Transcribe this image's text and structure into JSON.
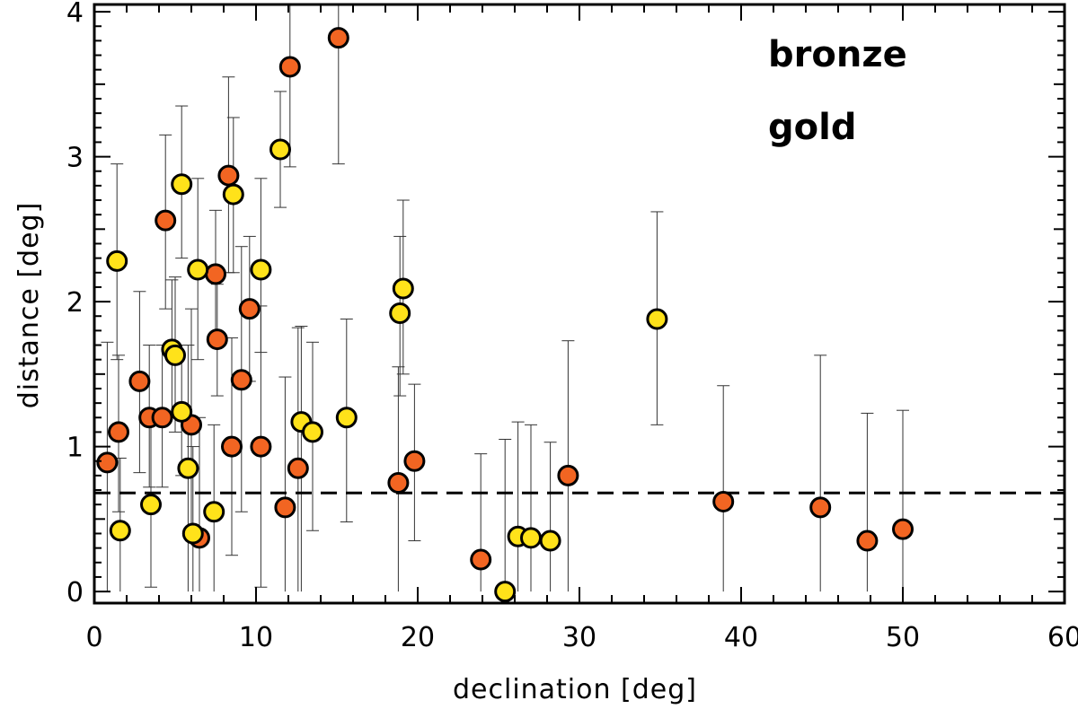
{
  "chart_data": {
    "type": "scatter",
    "title": "",
    "xlabel": "declination [deg]",
    "ylabel": "distance [deg]",
    "xlim": [
      0,
      60
    ],
    "ylim": [
      -0.08,
      4.05
    ],
    "xticks": [
      0,
      10,
      20,
      30,
      40,
      50,
      60
    ],
    "yticks": [
      0,
      1,
      2,
      3,
      4
    ],
    "xtick_labels": [
      "0",
      "10",
      "20",
      "30",
      "40",
      "50",
      "60"
    ],
    "ytick_labels": [
      "0",
      "1",
      "2",
      "3",
      "4"
    ],
    "reference_line": {
      "y": 0.68,
      "style": "dashed"
    },
    "legend": [
      {
        "label": "bronze",
        "color": "#FF7F27"
      },
      {
        "label": "gold",
        "color": "#FFE21A"
      }
    ],
    "series": [
      {
        "name": "bronze",
        "color": "#F26522",
        "points": [
          {
            "x": 0.8,
            "y": 0.89,
            "lo": 0.0,
            "hi": 1.72
          },
          {
            "x": 1.5,
            "y": 1.1,
            "lo": 0.55,
            "hi": 1.63
          },
          {
            "x": 2.8,
            "y": 1.45,
            "lo": 0.82,
            "hi": 2.07
          },
          {
            "x": 3.4,
            "y": 1.2,
            "lo": 0.72,
            "hi": 1.7
          },
          {
            "x": 4.2,
            "y": 1.2,
            "lo": 0.72,
            "hi": 1.7
          },
          {
            "x": 4.4,
            "y": 2.56,
            "lo": 1.95,
            "hi": 3.15
          },
          {
            "x": 6.0,
            "y": 1.15,
            "lo": 0.35,
            "hi": 1.95
          },
          {
            "x": 6.5,
            "y": 0.37,
            "lo": 0.0,
            "hi": 1.2
          },
          {
            "x": 7.5,
            "y": 2.19,
            "lo": 1.75,
            "hi": 2.63
          },
          {
            "x": 7.6,
            "y": 1.74,
            "lo": 1.35,
            "hi": 2.12
          },
          {
            "x": 8.3,
            "y": 2.87,
            "lo": 2.2,
            "hi": 3.55
          },
          {
            "x": 8.5,
            "y": 1.0,
            "lo": 0.25,
            "hi": 1.75
          },
          {
            "x": 9.1,
            "y": 1.46,
            "lo": 0.55,
            "hi": 2.38
          },
          {
            "x": 9.6,
            "y": 1.95,
            "lo": 1.45,
            "hi": 2.45
          },
          {
            "x": 10.3,
            "y": 1.0,
            "lo": 0.03,
            "hi": 1.97
          },
          {
            "x": 11.8,
            "y": 0.58,
            "lo": 0.0,
            "hi": 1.48
          },
          {
            "x": 12.1,
            "y": 3.62,
            "lo": 2.93,
            "hi": 4.05
          },
          {
            "x": 12.6,
            "y": 0.85,
            "lo": 0.0,
            "hi": 1.82
          },
          {
            "x": 15.1,
            "y": 3.82,
            "lo": 2.95,
            "hi": 4.05
          },
          {
            "x": 18.8,
            "y": 0.75,
            "lo": 0.0,
            "hi": 1.55
          },
          {
            "x": 19.8,
            "y": 0.9,
            "lo": 0.35,
            "hi": 1.43
          },
          {
            "x": 23.9,
            "y": 0.22,
            "lo": 0.0,
            "hi": 0.95
          },
          {
            "x": 29.3,
            "y": 0.8,
            "lo": 0.0,
            "hi": 1.73
          },
          {
            "x": 38.9,
            "y": 0.62,
            "lo": 0.0,
            "hi": 1.42
          },
          {
            "x": 44.9,
            "y": 0.58,
            "lo": 0.0,
            "hi": 1.63
          },
          {
            "x": 47.8,
            "y": 0.35,
            "lo": 0.0,
            "hi": 1.23
          },
          {
            "x": 50.0,
            "y": 0.43,
            "lo": 0.0,
            "hi": 1.25
          }
        ]
      },
      {
        "name": "gold",
        "color": "#FFE21A",
        "points": [
          {
            "x": 1.4,
            "y": 2.28,
            "lo": 1.6,
            "hi": 2.95
          },
          {
            "x": 1.6,
            "y": 0.42,
            "lo": 0.0,
            "hi": 0.92
          },
          {
            "x": 3.5,
            "y": 0.6,
            "lo": 0.03,
            "hi": 1.18
          },
          {
            "x": 4.8,
            "y": 1.67,
            "lo": 1.2,
            "hi": 2.15
          },
          {
            "x": 5.0,
            "y": 1.63,
            "lo": 1.1,
            "hi": 2.17
          },
          {
            "x": 5.4,
            "y": 1.24,
            "lo": 0.8,
            "hi": 1.7
          },
          {
            "x": 5.4,
            "y": 2.81,
            "lo": 2.3,
            "hi": 3.35
          },
          {
            "x": 5.8,
            "y": 0.85,
            "lo": 0.0,
            "hi": 1.7
          },
          {
            "x": 6.1,
            "y": 0.4,
            "lo": 0.0,
            "hi": 1.0
          },
          {
            "x": 6.4,
            "y": 2.22,
            "lo": 1.6,
            "hi": 2.85
          },
          {
            "x": 7.4,
            "y": 0.55,
            "lo": 0.0,
            "hi": 1.15
          },
          {
            "x": 8.6,
            "y": 2.74,
            "lo": 2.2,
            "hi": 3.27
          },
          {
            "x": 10.3,
            "y": 2.22,
            "lo": 1.65,
            "hi": 2.85
          },
          {
            "x": 11.5,
            "y": 3.05,
            "lo": 2.65,
            "hi": 3.45
          },
          {
            "x": 12.8,
            "y": 1.17,
            "lo": 0.0,
            "hi": 1.83
          },
          {
            "x": 13.5,
            "y": 1.1,
            "lo": 0.42,
            "hi": 1.72
          },
          {
            "x": 15.6,
            "y": 1.2,
            "lo": 0.48,
            "hi": 1.88
          },
          {
            "x": 18.9,
            "y": 1.92,
            "lo": 1.35,
            "hi": 2.45
          },
          {
            "x": 19.1,
            "y": 2.09,
            "lo": 1.5,
            "hi": 2.7
          },
          {
            "x": 25.4,
            "y": 0.0,
            "lo": 0.0,
            "hi": 1.05
          },
          {
            "x": 26.2,
            "y": 0.38,
            "lo": 0.0,
            "hi": 1.17
          },
          {
            "x": 27.0,
            "y": 0.37,
            "lo": 0.0,
            "hi": 1.15
          },
          {
            "x": 28.2,
            "y": 0.35,
            "lo": 0.0,
            "hi": 1.03
          },
          {
            "x": 34.8,
            "y": 1.88,
            "lo": 1.15,
            "hi": 2.62
          }
        ]
      }
    ]
  }
}
